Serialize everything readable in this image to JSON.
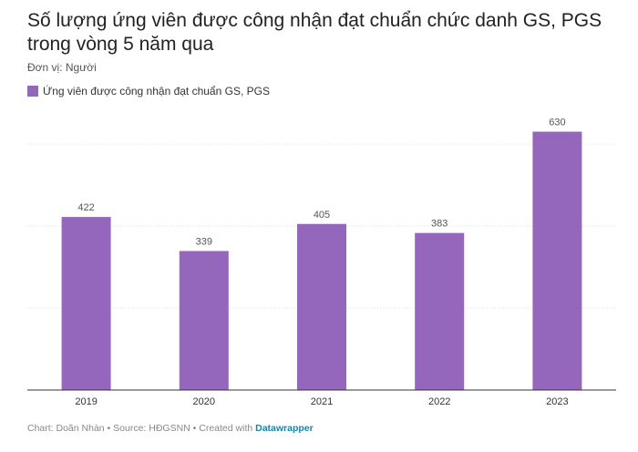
{
  "header": {
    "title": "Số lượng ứng viên được công nhận đạt chuẩn chức danh GS, PGS trong vòng 5 năm qua",
    "unit": "Đơn vị: Người"
  },
  "footer": {
    "credit": "Chart: Doãn Nhàn • Source: HĐGSNN • Created with ",
    "brand": "Datawrapper"
  },
  "colors": {
    "bar": "#9467bd",
    "grid": "#dddddd",
    "axis": "#333333",
    "label": "#555555"
  },
  "chart_data": {
    "type": "bar",
    "categories": [
      "2019",
      "2020",
      "2021",
      "2022",
      "2023"
    ],
    "series": [
      {
        "name": "Ứng viên được công nhận đạt chuẩn GS, PGS",
        "values": [
          422,
          339,
          405,
          383,
          630
        ]
      }
    ],
    "ylim": [
      0,
      600
    ],
    "grid": true,
    "legend": "top-left"
  }
}
